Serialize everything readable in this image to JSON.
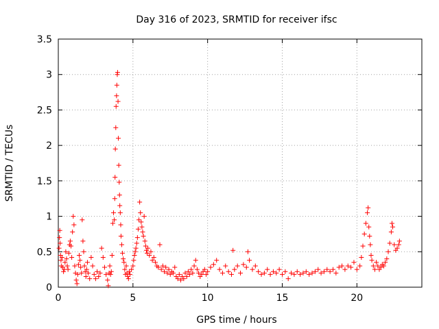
{
  "chart_data": {
    "type": "scatter",
    "title": "Day 316 of 2023, SRMTID for receiver ifsc",
    "xlabel": "GPS time / hours",
    "ylabel": "SRMTID / TECUs",
    "xlim": [
      0,
      24.35
    ],
    "ylim": [
      0,
      3.5
    ],
    "xticks": [
      0,
      5,
      10,
      15,
      20
    ],
    "xtick_labels": [
      "0",
      "5",
      "10",
      "15",
      "20"
    ],
    "yticks": [
      0,
      0.5,
      1,
      1.5,
      2,
      2.5,
      3,
      3.5
    ],
    "ytick_labels": [
      "0",
      "0.5",
      "1",
      "1.5",
      "2",
      "2.5",
      "3",
      "3.5"
    ],
    "grid": true,
    "marker": "+",
    "color": "#ff0000",
    "series": [
      {
        "name": "SRMTID",
        "points": [
          [
            0.05,
            0.55
          ],
          [
            0.08,
            0.7
          ],
          [
            0.1,
            0.8
          ],
          [
            0.12,
            0.62
          ],
          [
            0.15,
            0.45
          ],
          [
            0.18,
            0.38
          ],
          [
            0.2,
            0.3
          ],
          [
            0.25,
            0.42
          ],
          [
            0.3,
            0.28
          ],
          [
            0.35,
            0.22
          ],
          [
            0.4,
            0.25
          ],
          [
            0.45,
            0.35
          ],
          [
            0.5,
            0.5
          ],
          [
            0.55,
            0.4
          ],
          [
            0.6,
            0.3
          ],
          [
            0.65,
            0.25
          ],
          [
            0.7,
            0.48
          ],
          [
            0.75,
            0.6
          ],
          [
            0.8,
            0.65
          ],
          [
            0.85,
            0.58
          ],
          [
            0.9,
            0.42
          ],
          [
            0.95,
            0.78
          ],
          [
            1.0,
            1.0
          ],
          [
            1.05,
            0.88
          ],
          [
            1.1,
            0.3
          ],
          [
            1.15,
            0.2
          ],
          [
            1.2,
            0.1
          ],
          [
            1.25,
            0.05
          ],
          [
            1.3,
            0.18
          ],
          [
            1.35,
            0.32
          ],
          [
            1.4,
            0.45
          ],
          [
            1.45,
            0.38
          ],
          [
            1.5,
            0.28
          ],
          [
            1.55,
            0.2
          ],
          [
            1.6,
            0.95
          ],
          [
            1.65,
            0.65
          ],
          [
            1.7,
            0.5
          ],
          [
            1.75,
            0.3
          ],
          [
            1.8,
            0.22
          ],
          [
            1.85,
            0.15
          ],
          [
            1.9,
            0.25
          ],
          [
            1.95,
            0.35
          ],
          [
            2.0,
            0.2
          ],
          [
            2.1,
            0.12
          ],
          [
            2.2,
            0.42
          ],
          [
            2.3,
            0.3
          ],
          [
            2.4,
            0.18
          ],
          [
            2.5,
            0.12
          ],
          [
            2.6,
            0.22
          ],
          [
            2.7,
            0.15
          ],
          [
            2.8,
            0.2
          ],
          [
            2.9,
            0.55
          ],
          [
            3.0,
            0.42
          ],
          [
            3.1,
            0.28
          ],
          [
            3.2,
            0.18
          ],
          [
            3.3,
            0.1
          ],
          [
            3.35,
            0.02
          ],
          [
            3.4,
            0.2
          ],
          [
            3.45,
            0.3
          ],
          [
            3.5,
            0.18
          ],
          [
            3.55,
            0.22
          ],
          [
            3.6,
            0.45
          ],
          [
            3.65,
            0.9
          ],
          [
            3.7,
            1.05
          ],
          [
            3.75,
            0.95
          ],
          [
            3.78,
            1.25
          ],
          [
            3.8,
            1.55
          ],
          [
            3.82,
            1.95
          ],
          [
            3.85,
            2.25
          ],
          [
            3.87,
            2.55
          ],
          [
            3.9,
            2.7
          ],
          [
            3.92,
            2.85
          ],
          [
            3.95,
            3.0
          ],
          [
            3.97,
            3.03
          ],
          [
            4.0,
            2.62
          ],
          [
            4.02,
            2.1
          ],
          [
            4.05,
            1.72
          ],
          [
            4.08,
            1.48
          ],
          [
            4.1,
            1.3
          ],
          [
            4.12,
            1.15
          ],
          [
            4.15,
            1.05
          ],
          [
            4.18,
            0.88
          ],
          [
            4.2,
            0.72
          ],
          [
            4.25,
            0.6
          ],
          [
            4.3,
            0.48
          ],
          [
            4.35,
            0.4
          ],
          [
            4.4,
            0.35
          ],
          [
            4.45,
            0.25
          ],
          [
            4.5,
            0.18
          ],
          [
            4.55,
            0.3
          ],
          [
            4.6,
            0.2
          ],
          [
            4.65,
            0.15
          ],
          [
            4.7,
            0.12
          ],
          [
            4.75,
            0.22
          ],
          [
            4.8,
            0.18
          ],
          [
            4.9,
            0.25
          ],
          [
            5.0,
            0.3
          ],
          [
            5.05,
            0.38
          ],
          [
            5.1,
            0.45
          ],
          [
            5.15,
            0.5
          ],
          [
            5.2,
            0.55
          ],
          [
            5.25,
            0.62
          ],
          [
            5.3,
            0.7
          ],
          [
            5.35,
            0.82
          ],
          [
            5.4,
            0.95
          ],
          [
            5.45,
            1.2
          ],
          [
            5.5,
            1.05
          ],
          [
            5.55,
            0.92
          ],
          [
            5.6,
            0.85
          ],
          [
            5.65,
            0.78
          ],
          [
            5.7,
            0.72
          ],
          [
            5.75,
            1.0
          ],
          [
            5.8,
            0.65
          ],
          [
            5.85,
            0.58
          ],
          [
            5.9,
            0.52
          ],
          [
            5.95,
            0.48
          ],
          [
            6.0,
            0.55
          ],
          [
            6.1,
            0.45
          ],
          [
            6.2,
            0.5
          ],
          [
            6.3,
            0.38
          ],
          [
            6.4,
            0.42
          ],
          [
            6.5,
            0.35
          ],
          [
            6.6,
            0.3
          ],
          [
            6.7,
            0.28
          ],
          [
            6.8,
            0.6
          ],
          [
            6.9,
            0.25
          ],
          [
            7.0,
            0.3
          ],
          [
            7.1,
            0.22
          ],
          [
            7.2,
            0.28
          ],
          [
            7.3,
            0.2
          ],
          [
            7.4,
            0.25
          ],
          [
            7.5,
            0.18
          ],
          [
            7.6,
            0.22
          ],
          [
            7.7,
            0.2
          ],
          [
            7.8,
            0.28
          ],
          [
            7.9,
            0.15
          ],
          [
            8.0,
            0.12
          ],
          [
            8.1,
            0.18
          ],
          [
            8.2,
            0.1
          ],
          [
            8.3,
            0.15
          ],
          [
            8.4,
            0.12
          ],
          [
            8.5,
            0.2
          ],
          [
            8.6,
            0.15
          ],
          [
            8.7,
            0.22
          ],
          [
            8.8,
            0.18
          ],
          [
            8.9,
            0.25
          ],
          [
            9.0,
            0.2
          ],
          [
            9.1,
            0.3
          ],
          [
            9.2,
            0.38
          ],
          [
            9.3,
            0.25
          ],
          [
            9.4,
            0.2
          ],
          [
            9.5,
            0.15
          ],
          [
            9.6,
            0.18
          ],
          [
            9.7,
            0.22
          ],
          [
            9.8,
            0.25
          ],
          [
            9.9,
            0.18
          ],
          [
            10.0,
            0.22
          ],
          [
            10.2,
            0.28
          ],
          [
            10.4,
            0.32
          ],
          [
            10.6,
            0.38
          ],
          [
            10.8,
            0.25
          ],
          [
            11.0,
            0.2
          ],
          [
            11.2,
            0.3
          ],
          [
            11.4,
            0.22
          ],
          [
            11.6,
            0.18
          ],
          [
            11.7,
            0.52
          ],
          [
            11.8,
            0.25
          ],
          [
            12.0,
            0.3
          ],
          [
            12.2,
            0.2
          ],
          [
            12.4,
            0.32
          ],
          [
            12.6,
            0.28
          ],
          [
            12.7,
            0.5
          ],
          [
            12.8,
            0.38
          ],
          [
            13.0,
            0.25
          ],
          [
            13.2,
            0.3
          ],
          [
            13.4,
            0.22
          ],
          [
            13.6,
            0.18
          ],
          [
            13.8,
            0.2
          ],
          [
            14.0,
            0.25
          ],
          [
            14.2,
            0.18
          ],
          [
            14.4,
            0.22
          ],
          [
            14.6,
            0.2
          ],
          [
            14.8,
            0.25
          ],
          [
            15.0,
            0.18
          ],
          [
            15.2,
            0.22
          ],
          [
            15.4,
            0.12
          ],
          [
            15.6,
            0.2
          ],
          [
            15.8,
            0.18
          ],
          [
            16.0,
            0.22
          ],
          [
            16.2,
            0.18
          ],
          [
            16.4,
            0.2
          ],
          [
            16.6,
            0.22
          ],
          [
            16.8,
            0.18
          ],
          [
            17.0,
            0.2
          ],
          [
            17.2,
            0.22
          ],
          [
            17.4,
            0.25
          ],
          [
            17.6,
            0.2
          ],
          [
            17.8,
            0.22
          ],
          [
            18.0,
            0.25
          ],
          [
            18.2,
            0.22
          ],
          [
            18.4,
            0.25
          ],
          [
            18.6,
            0.2
          ],
          [
            18.8,
            0.28
          ],
          [
            19.0,
            0.3
          ],
          [
            19.2,
            0.25
          ],
          [
            19.4,
            0.3
          ],
          [
            19.6,
            0.28
          ],
          [
            19.8,
            0.35
          ],
          [
            20.0,
            0.25
          ],
          [
            20.2,
            0.3
          ],
          [
            20.3,
            0.42
          ],
          [
            20.4,
            0.58
          ],
          [
            20.5,
            0.75
          ],
          [
            20.6,
            0.9
          ],
          [
            20.7,
            1.05
          ],
          [
            20.75,
            1.12
          ],
          [
            20.8,
            0.85
          ],
          [
            20.85,
            0.72
          ],
          [
            20.9,
            0.6
          ],
          [
            20.95,
            0.45
          ],
          [
            21.0,
            0.38
          ],
          [
            21.1,
            0.3
          ],
          [
            21.2,
            0.25
          ],
          [
            21.3,
            0.35
          ],
          [
            21.4,
            0.3
          ],
          [
            21.5,
            0.25
          ],
          [
            21.6,
            0.28
          ],
          [
            21.7,
            0.32
          ],
          [
            21.8,
            0.3
          ],
          [
            21.9,
            0.35
          ],
          [
            22.0,
            0.4
          ],
          [
            22.1,
            0.5
          ],
          [
            22.2,
            0.62
          ],
          [
            22.3,
            0.78
          ],
          [
            22.35,
            0.9
          ],
          [
            22.4,
            0.85
          ],
          [
            22.5,
            0.6
          ],
          [
            22.6,
            0.52
          ],
          [
            22.7,
            0.55
          ],
          [
            22.8,
            0.6
          ],
          [
            22.85,
            0.65
          ]
        ]
      }
    ]
  }
}
